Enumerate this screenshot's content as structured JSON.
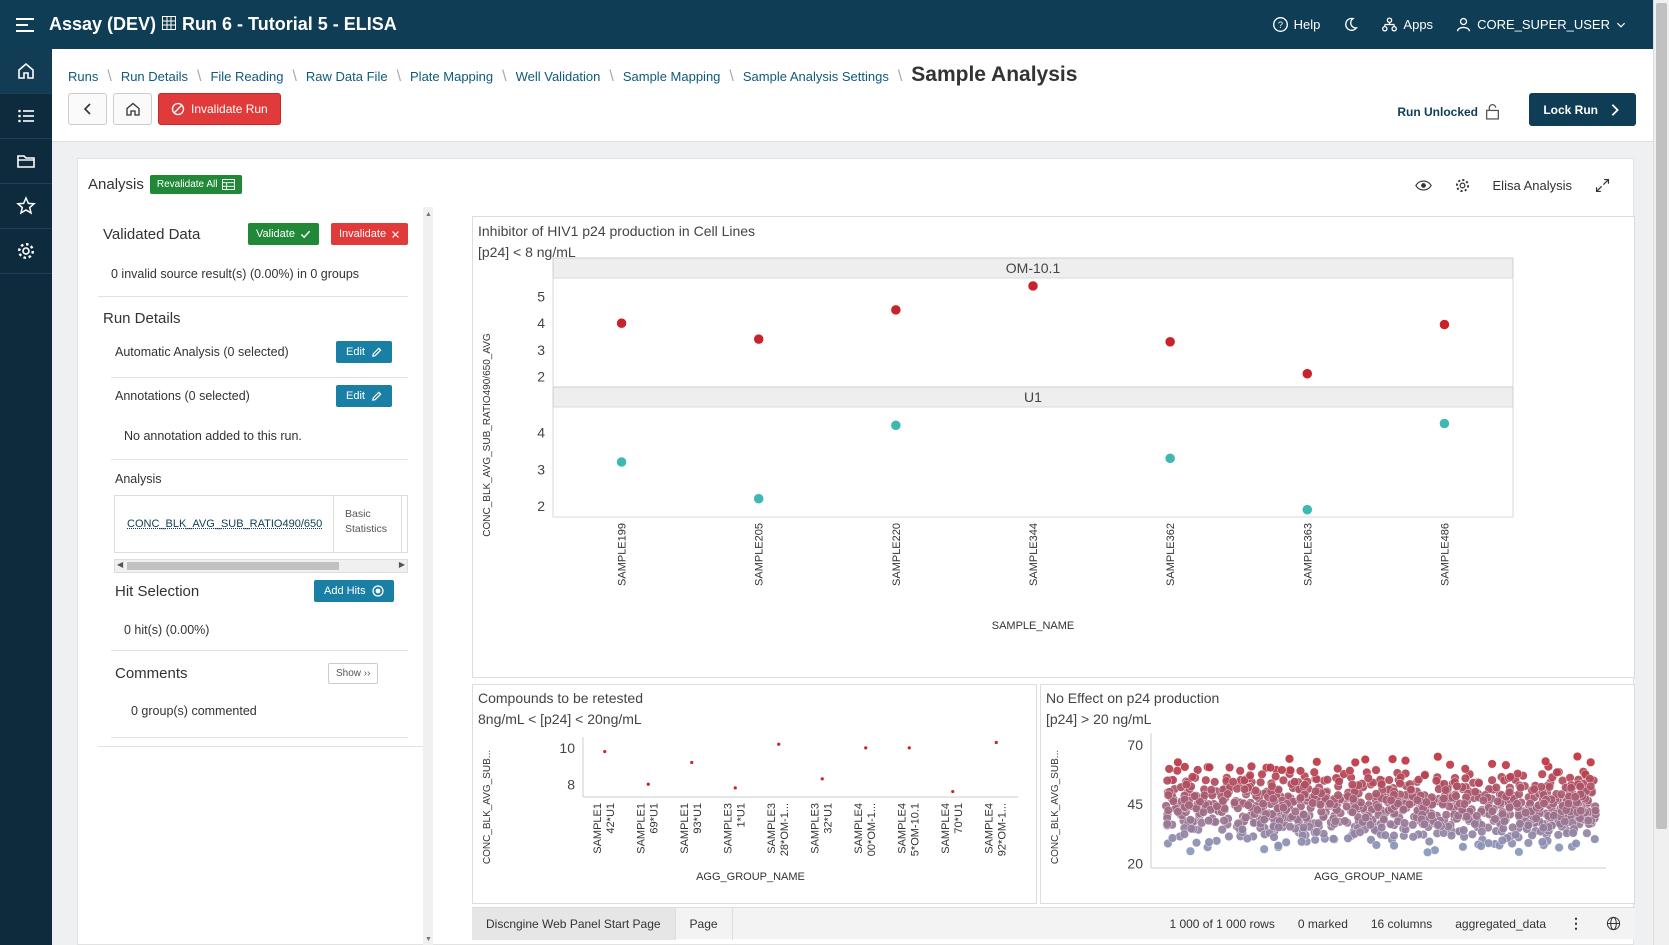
{
  "app": {
    "title": "Assay (DEV)",
    "subtitle": "Run 6 - Tutorial 5 - ELISA"
  },
  "topbar": {
    "help": "Help",
    "apps": "Apps",
    "user": "CORE_SUPER_USER"
  },
  "breadcrumb": {
    "items": [
      "Runs",
      "Run Details",
      "File Reading",
      "Raw Data File",
      "Plate Mapping",
      "Well Validation",
      "Sample Mapping",
      "Sample Analysis Settings"
    ],
    "current": "Sample Analysis"
  },
  "header": {
    "invalidate_run": "Invalidate Run",
    "run_status": "Run Unlocked",
    "lock_run": "Lock Run"
  },
  "card": {
    "title": "Analysis",
    "revalidate_all": "Revalidate All",
    "tool_label": "Elisa Analysis"
  },
  "left_panel": {
    "validated_title": "Validated Data",
    "validate_btn": "Validate",
    "invalidate_btn": "Invalidate",
    "invalid_summary": "0 invalid source result(s) (0.00%) in 0 groups",
    "run_details_title": "Run Details",
    "auto_analysis": "Automatic Analysis (0 selected)",
    "annotations": "Annotations (0 selected)",
    "edit_btn": "Edit",
    "no_annotation": "No annotation added to this run.",
    "analysis_label": "Analysis",
    "analysis_col1": "CONC_BLK_AVG_SUB_RATIO490/650",
    "analysis_col2_a": "Basic",
    "analysis_col2_b": "Statistics",
    "hit_selection_title": "Hit Selection",
    "add_hits_btn": "Add Hits",
    "hits_summary": "0 hit(s) (0.00%)",
    "comments_title": "Comments",
    "show_btn": "Show",
    "comments_summary": "0 group(s) commented"
  },
  "chart_data": [
    {
      "type": "scatter",
      "title": "Inhibitor of HIV1 p24 production in Cell Lines",
      "subtitle": "[p24] < 8 ng/mL",
      "xlabel": "SAMPLE_NAME",
      "ylabel": "CONC_BLK_AVG_SUB_RATIO490/650_AVG",
      "categories": [
        "SAMPLE199",
        "SAMPLE205",
        "SAMPLE220",
        "SAMPLE344",
        "SAMPLE362",
        "SAMPLE363",
        "SAMPLE486"
      ],
      "panels": [
        {
          "name": "OM-10.1",
          "color": "#c8222a",
          "values": [
            4.0,
            3.4,
            4.5,
            5.4,
            3.3,
            2.1,
            3.95
          ],
          "yticks": [
            2,
            3,
            4,
            5
          ],
          "ylim": [
            1.6,
            5.7
          ]
        },
        {
          "name": "U1",
          "color": "#3fb8b2",
          "values": [
            3.2,
            2.2,
            4.2,
            3.3,
            1.9,
            4.25
          ],
          "xidx": [
            0,
            1,
            2,
            4,
            5,
            6
          ],
          "yticks": [
            2,
            3,
            4
          ],
          "ylim": [
            1.7,
            4.7
          ]
        }
      ]
    },
    {
      "type": "scatter",
      "title": "Compounds to be retested",
      "subtitle": "8ng/mL < [p24] < 20ng/mL",
      "xlabel": "AGG_GROUP_NAME",
      "ylabel": "CONC_BLK_AVG_SUB...",
      "categories": [
        "SAMPLE142*U1",
        "SAMPLE169*U1",
        "SAMPLE193*U1",
        "SAMPLE31*U1",
        "SAMPLE328*OM-1...",
        "SAMPLE332*U1",
        "SAMPLE400*OM-1...",
        "SAMPLE45*OM-10.1",
        "SAMPLE470*U1",
        "SAMPLE492*OM-1..."
      ],
      "category_lines": [
        [
          "SAMPLE1",
          "42*U1"
        ],
        [
          "SAMPLE1",
          "69*U1"
        ],
        [
          "SAMPLE1",
          "93*U1"
        ],
        [
          "SAMPLE3",
          "1*U1"
        ],
        [
          "SAMPLE3",
          "28*OM-1..."
        ],
        [
          "SAMPLE3",
          "32*U1"
        ],
        [
          "SAMPLE4",
          "00*OM-1..."
        ],
        [
          "SAMPLE4",
          "5*OM-10.1"
        ],
        [
          "SAMPLE4",
          "70*U1"
        ],
        [
          "SAMPLE4",
          "92*OM-1..."
        ]
      ],
      "values": [
        9.8,
        8.0,
        9.2,
        7.8,
        10.2,
        8.3,
        10.0,
        10.0,
        7.6,
        10.3
      ],
      "yticks": [
        8,
        10
      ],
      "ylim": [
        7.3,
        10.6
      ],
      "color": "#c8222a"
    },
    {
      "type": "scatter",
      "title": "No Effect on p24 production",
      "subtitle": "[p24] > 20 ng/mL",
      "xlabel": "AGG_GROUP_NAME",
      "ylabel": "CONC_BLK_AVG_SUB...",
      "yticks": [
        20,
        45,
        70
      ],
      "ylim": [
        18,
        75
      ],
      "point_count": 1000,
      "color_low": "#7fa5cc",
      "color_high": "#c8222a"
    }
  ],
  "statusbar": {
    "tab1": "Discngine Web Panel Start Page",
    "tab2": "Page",
    "rows": "1 000 of 1 000 rows",
    "marked": "0 marked",
    "columns": "16 columns",
    "table": "aggregated_data"
  }
}
